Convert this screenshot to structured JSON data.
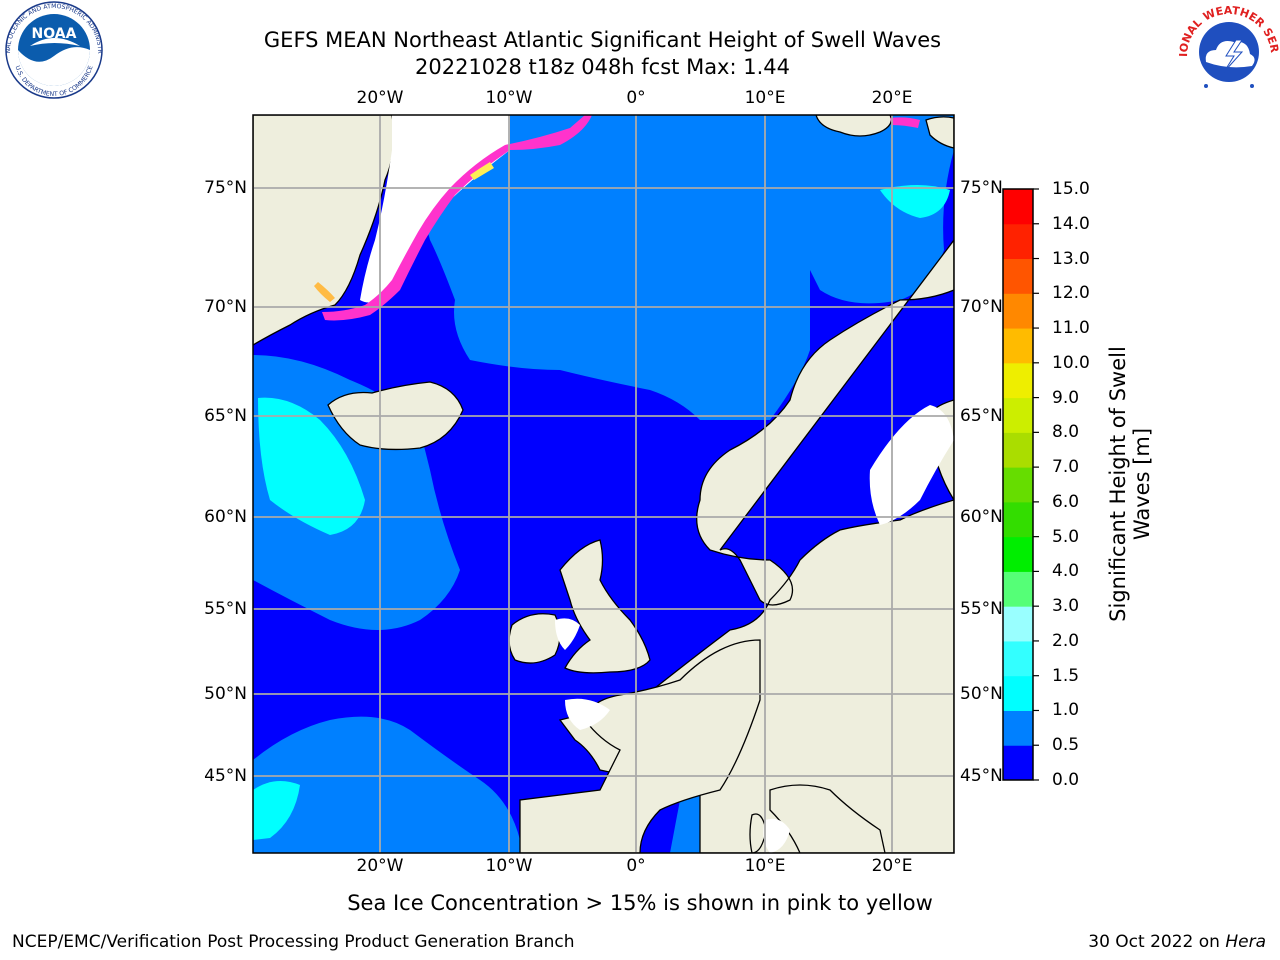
{
  "title_line1": "GEFS MEAN Northeast Atlantic Significant Height of Swell Waves",
  "title_line2": "20221028 t18z 048h fcst   Max: 1.44",
  "map": {
    "x_labels": [
      "20°W",
      "10°W",
      "0°",
      "10°E",
      "20°E"
    ],
    "y_labels": [
      "75°N",
      "70°N",
      "65°N",
      "60°N",
      "55°N",
      "50°N",
      "45°N"
    ],
    "colors": {
      "land": "#eeeedd",
      "ocean_low": "#0000ff",
      "ocean_mid": "#0080ff",
      "ocean_high": "#00ffff",
      "ice_pink": "#ff33cc",
      "ice_orange": "#ffbb44",
      "ice_yellow": "#ffee55",
      "grid": "#aaaaaa"
    }
  },
  "colorbar": {
    "label_line1": "Significant Height of Swell",
    "label_line2": "Waves [m]",
    "ticks": [
      "15.0",
      "14.0",
      "13.0",
      "12.0",
      "11.0",
      "10.0",
      "9.0",
      "8.0",
      "7.0",
      "6.0",
      "5.0",
      "4.0",
      "3.0",
      "2.0",
      "1.5",
      "1.0",
      "0.5",
      "0.0"
    ],
    "colors": [
      "#0000ff",
      "#0080ff",
      "#00ffff",
      "#33ffff",
      "#66ffff",
      "#99ffff",
      "#55ff77",
      "#00ee00",
      "#33dd00",
      "#66dd00",
      "#aadd00",
      "#ccee00",
      "#eeee00",
      "#ffee00",
      "#ffbb00",
      "#ff8800",
      "#ff5500",
      "#ff2200",
      "#ff0000"
    ]
  },
  "footnote": "Sea Ice Concentration > 15% is shown in pink to yellow",
  "footer_left": "NCEP/EMC/Verification Post Processing Product Generation Branch",
  "footer_right_prefix": "30 Oct 2022 on ",
  "footer_right_host": "Hera",
  "logos": {
    "noaa_text": "NOAA",
    "noaa_ring": "NATIONAL OCEANIC AND ATMOSPHERIC ADMINISTRATION",
    "noaa_ring_bottom": "U.S. DEPARTMENT OF COMMERCE",
    "nws_ring": "NATIONAL WEATHER SERVICE"
  }
}
